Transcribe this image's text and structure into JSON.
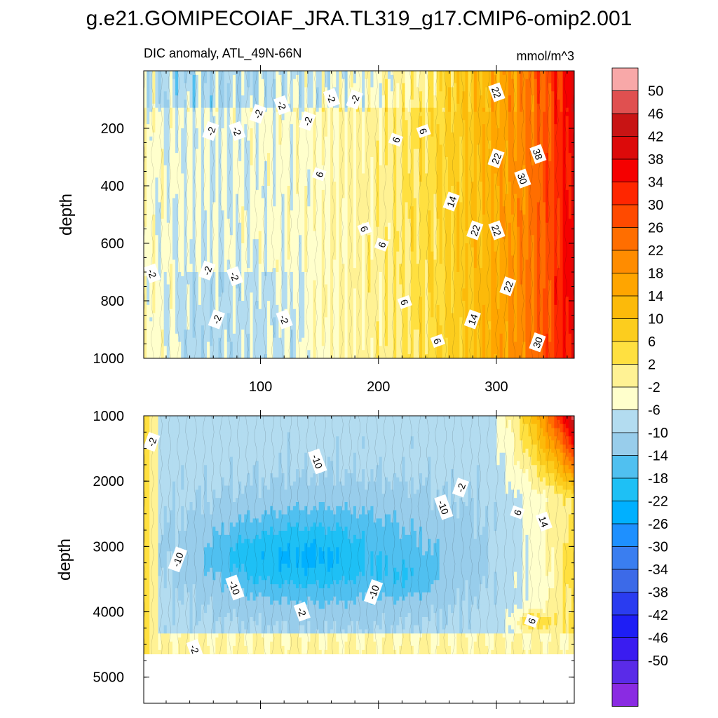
{
  "title": "g.e21.GOMIPECOIAF_JRA.TL319_g17.CMIP6-omip2.001",
  "chart_data": {
    "type": "contour",
    "subtitle_left": "DIC anomaly, ATL_49N-66N",
    "subtitle_right": "mmol/m^3",
    "x_range": [
      1,
      366
    ],
    "panels": [
      {
        "name": "upper",
        "ylabel": "depth",
        "ylim": [
          0,
          1000
        ],
        "y_ticks": [
          200,
          400,
          600,
          800,
          1000
        ],
        "x_ticks": [
          100,
          200,
          300
        ],
        "profile_points": [
          [
            1,
            1
          ],
          [
            20,
            -1
          ],
          [
            60,
            -2
          ],
          [
            100,
            -1
          ],
          [
            150,
            1
          ],
          [
            200,
            4
          ],
          [
            250,
            9
          ],
          [
            290,
            16
          ],
          [
            320,
            24
          ],
          [
            345,
            32
          ],
          [
            366,
            42
          ]
        ],
        "contour_labels": [
          {
            "text": "-2",
            "x": 58,
            "y": 210
          },
          {
            "text": "-2",
            "x": 80,
            "y": 210
          },
          {
            "text": "-2",
            "x": 98,
            "y": 150
          },
          {
            "text": "-2",
            "x": 118,
            "y": 120
          },
          {
            "text": "-2",
            "x": 140,
            "y": 175
          },
          {
            "text": "-2",
            "x": 160,
            "y": 95
          },
          {
            "text": "-2",
            "x": 180,
            "y": 100
          },
          {
            "text": "22",
            "x": 300,
            "y": 75
          },
          {
            "text": "6",
            "x": 215,
            "y": 240
          },
          {
            "text": "6",
            "x": 238,
            "y": 210
          },
          {
            "text": "6",
            "x": 150,
            "y": 360
          },
          {
            "text": "38",
            "x": 335,
            "y": 290
          },
          {
            "text": "22",
            "x": 300,
            "y": 305
          },
          {
            "text": "30",
            "x": 322,
            "y": 375
          },
          {
            "text": "14",
            "x": 262,
            "y": 455
          },
          {
            "text": "6",
            "x": 188,
            "y": 550
          },
          {
            "text": "22",
            "x": 282,
            "y": 555
          },
          {
            "text": "22",
            "x": 300,
            "y": 555
          },
          {
            "text": "6",
            "x": 203,
            "y": 605
          },
          {
            "text": "-2",
            "x": 8,
            "y": 705
          },
          {
            "text": "-2",
            "x": 55,
            "y": 695
          },
          {
            "text": "-2",
            "x": 78,
            "y": 715
          },
          {
            "text": "22",
            "x": 310,
            "y": 750
          },
          {
            "text": "6",
            "x": 222,
            "y": 805
          },
          {
            "text": "-2",
            "x": 63,
            "y": 865
          },
          {
            "text": "-2",
            "x": 120,
            "y": 865
          },
          {
            "text": "14",
            "x": 280,
            "y": 865
          },
          {
            "text": "6",
            "x": 250,
            "y": 940
          },
          {
            "text": "30",
            "x": 335,
            "y": 945
          }
        ]
      },
      {
        "name": "lower",
        "ylabel": "depth",
        "ylim": [
          1000,
          5400
        ],
        "y_ticks": [
          1000,
          2000,
          3000,
          4000,
          5000
        ],
        "bottom_fill_depth": 4650,
        "contour_labels": [
          {
            "text": "-2",
            "x": 8,
            "y": 1400
          },
          {
            "text": "-10",
            "x": 148,
            "y": 1700
          },
          {
            "text": "-2",
            "x": 270,
            "y": 2100
          },
          {
            "text": "-10",
            "x": 255,
            "y": 2400
          },
          {
            "text": "6",
            "x": 318,
            "y": 2480
          },
          {
            "text": "14",
            "x": 340,
            "y": 2620
          },
          {
            "text": "-10",
            "x": 30,
            "y": 3200
          },
          {
            "text": "-10",
            "x": 78,
            "y": 3630
          },
          {
            "text": "-10",
            "x": 196,
            "y": 3700
          },
          {
            "text": "-2",
            "x": 135,
            "y": 4000
          },
          {
            "text": "6",
            "x": 330,
            "y": 4140
          },
          {
            "text": "-2",
            "x": 44,
            "y": 4570
          }
        ]
      }
    ],
    "colorbar": {
      "labels": [
        "50",
        "46",
        "42",
        "38",
        "34",
        "30",
        "26",
        "22",
        "18",
        "14",
        "10",
        "6",
        "2",
        "-2",
        "-6",
        "-10",
        "-14",
        "-18",
        "-22",
        "-26",
        "-30",
        "-34",
        "-38",
        "-42",
        "-46",
        "-50"
      ],
      "levels": [
        -50,
        -46,
        -42,
        -38,
        -34,
        -30,
        -26,
        -22,
        -18,
        -14,
        -10,
        -6,
        -2,
        2,
        6,
        10,
        14,
        18,
        22,
        26,
        30,
        34,
        38,
        42,
        46,
        50
      ],
      "colors": [
        "#8a2be2",
        "#5a2be8",
        "#3a1cf0",
        "#1e1ef5",
        "#2a3cf0",
        "#3c6ae8",
        "#3a7ef0",
        "#1e90ff",
        "#00b0ff",
        "#1ec0f5",
        "#50c0f0",
        "#98cdeb",
        "#b3dcf0",
        "#ffffcc",
        "#fff294",
        "#ffe040",
        "#fccd1e",
        "#fcba0a",
        "#ffa500",
        "#ff8c00",
        "#ff6e00",
        "#ff4a00",
        "#ff2600",
        "#f50000",
        "#dc0a0a",
        "#c81414",
        "#e05050",
        "#f8a8a8"
      ]
    }
  }
}
